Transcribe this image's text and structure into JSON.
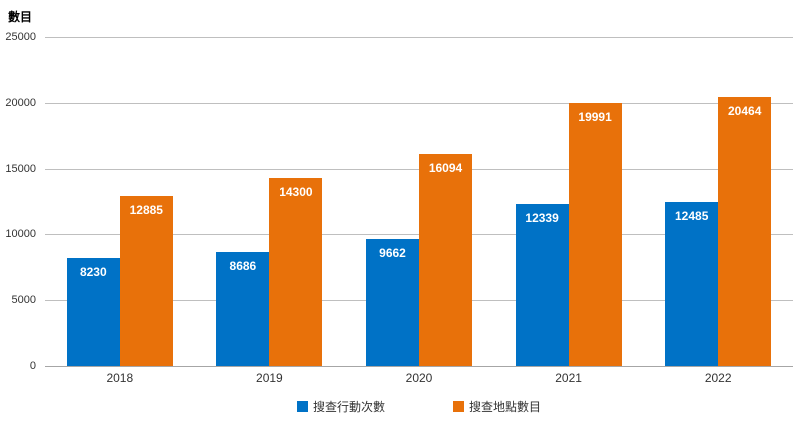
{
  "chart_data": {
    "type": "bar",
    "title": "",
    "ylabel": "數目",
    "xlabel": "",
    "categories": [
      "2018",
      "2019",
      "2020",
      "2021",
      "2022"
    ],
    "series": [
      {
        "name": "搜查行動次數",
        "color": "#0072C6",
        "values": [
          8230,
          8686,
          9662,
          12339,
          12485
        ]
      },
      {
        "name": "搜查地點數目",
        "color": "#E8710A",
        "values": [
          12885,
          14300,
          16094,
          19991,
          20464
        ]
      }
    ],
    "ylim": [
      0,
      25000
    ],
    "ytick_step": 5000,
    "grid": true,
    "legend_position": "bottom",
    "value_labels": "inside-top-white-bold"
  },
  "colors": {
    "gridline": "#bfbfbf",
    "axis_line": "#a6a6a6",
    "tick_text": "#333333",
    "background": "#ffffff"
  }
}
